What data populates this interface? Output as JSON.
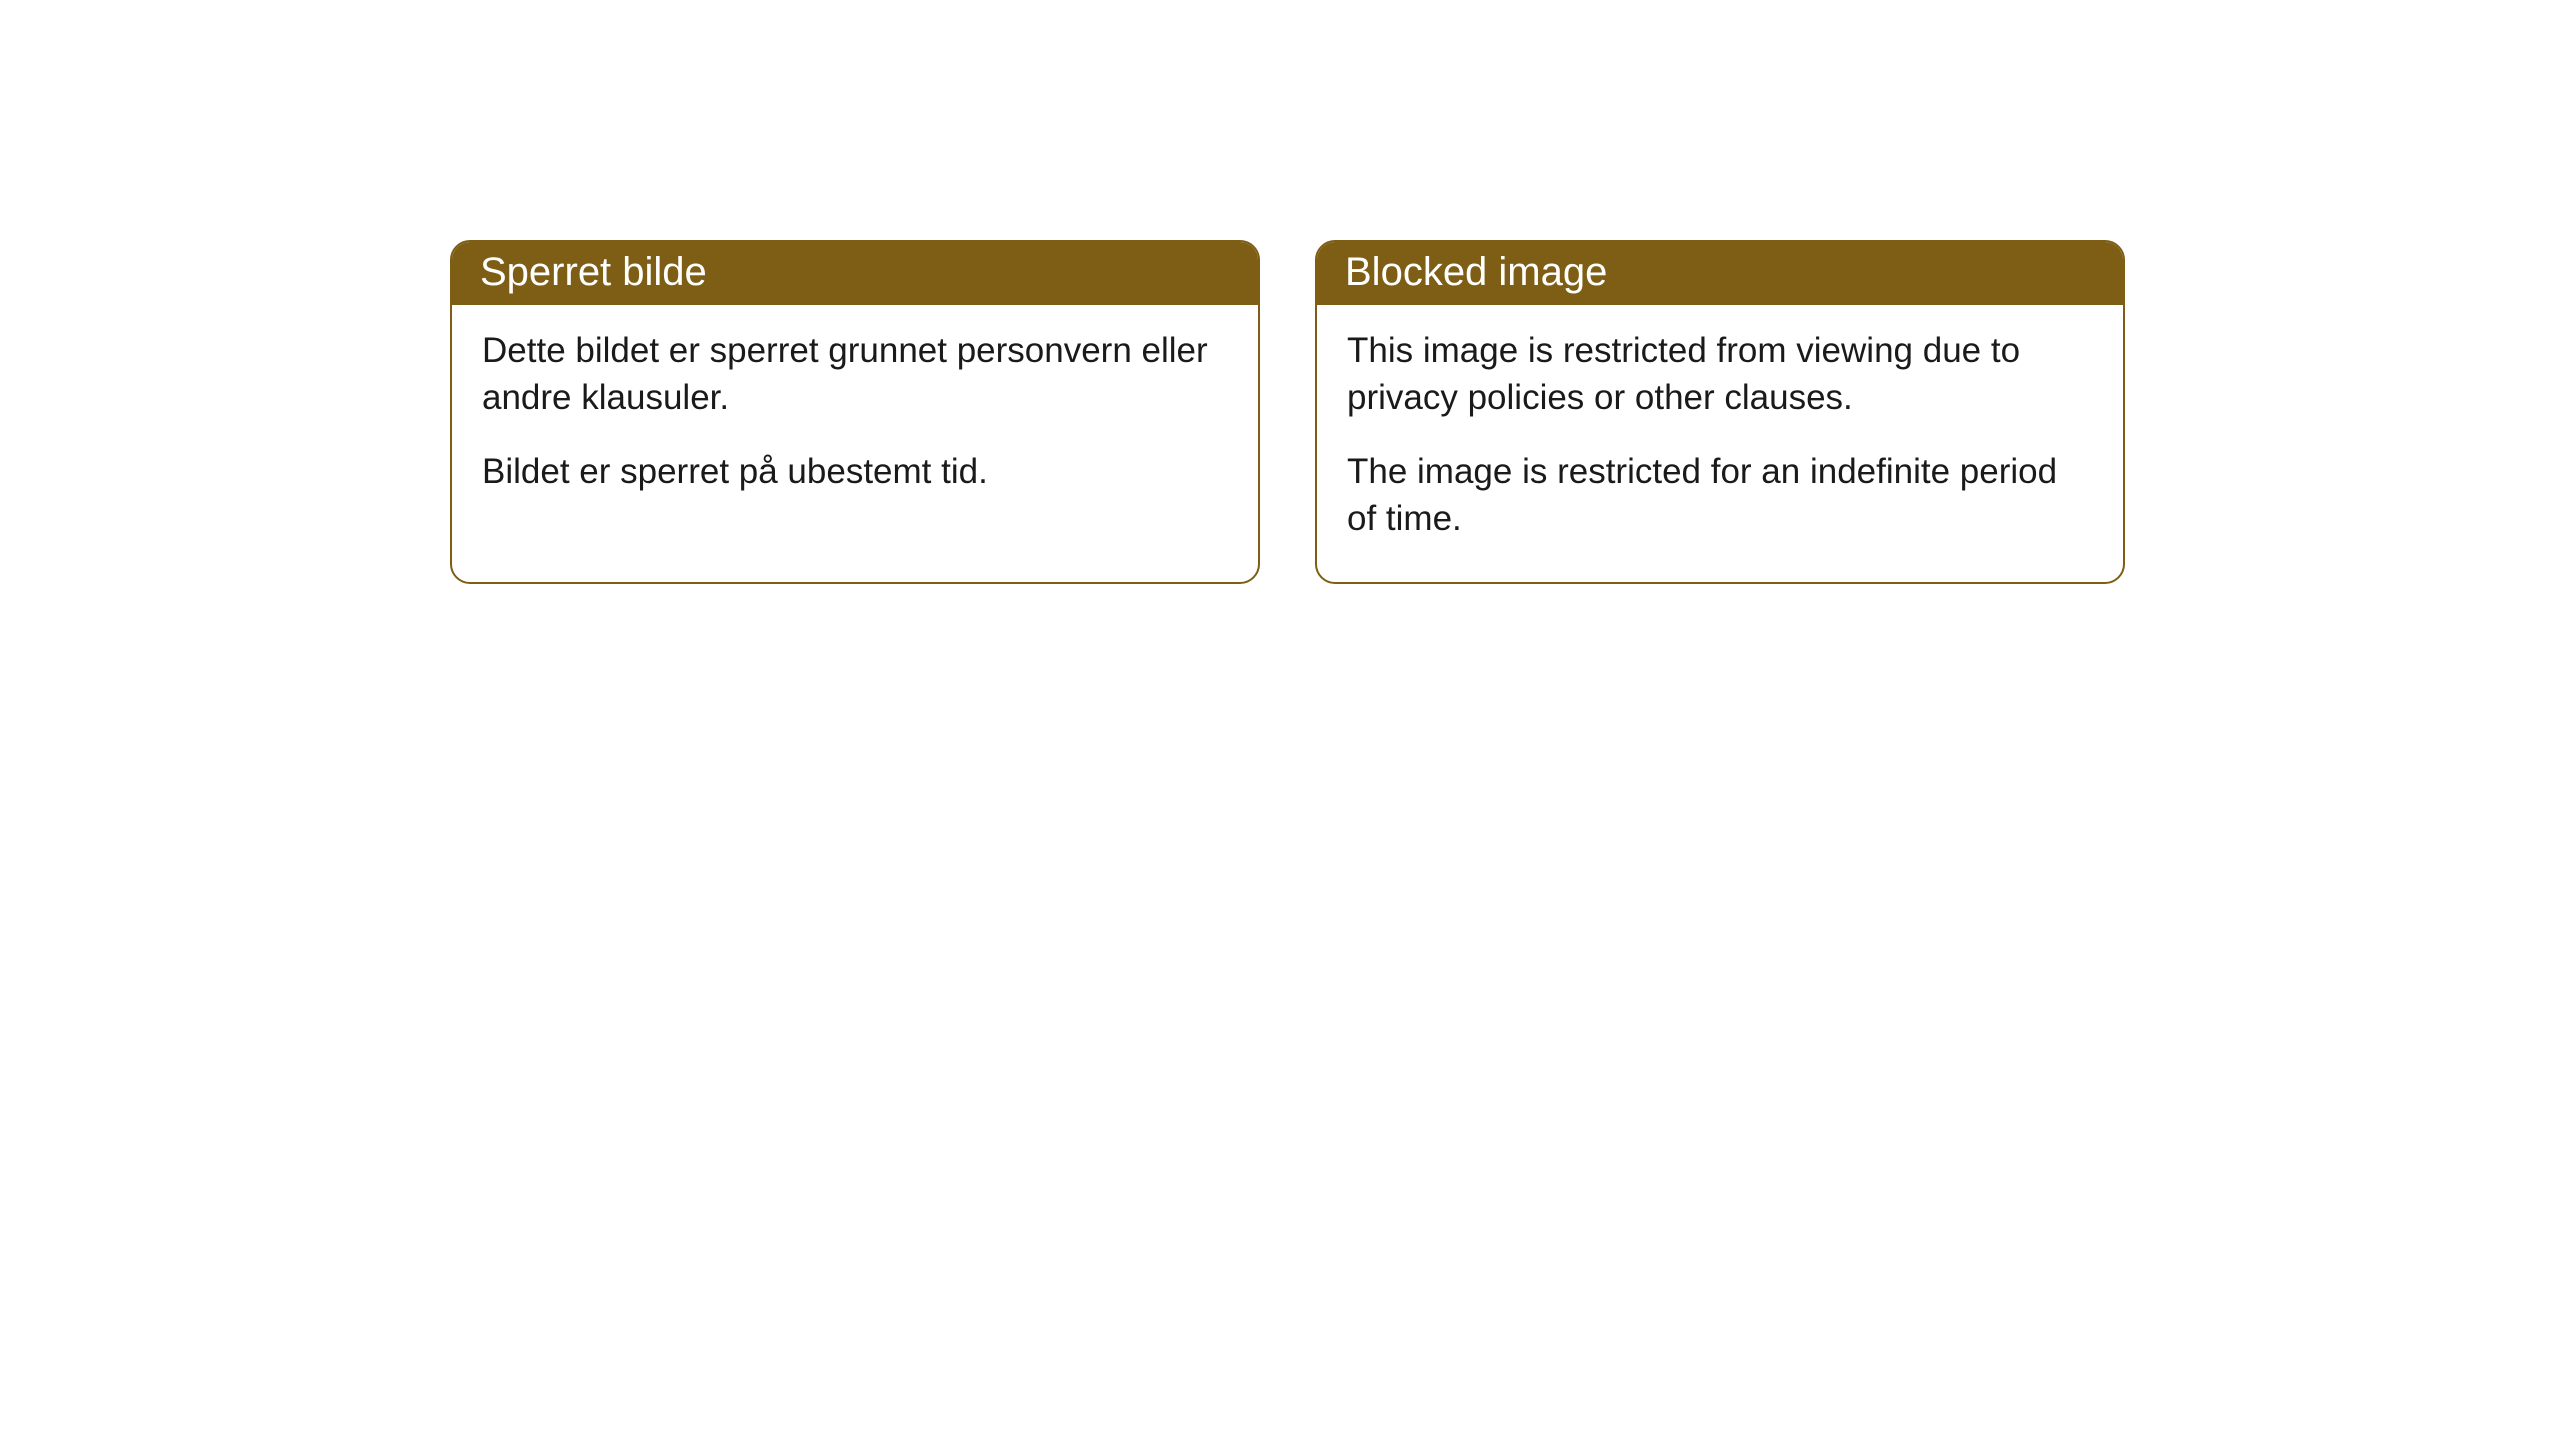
{
  "cards": [
    {
      "title": "Sperret bilde",
      "paragraph1": "Dette bildet er sperret grunnet personvern eller andre klausuler.",
      "paragraph2": "Bildet er sperret på ubestemt tid."
    },
    {
      "title": "Blocked image",
      "paragraph1": "This image is restricted from viewing due to privacy policies or other clauses.",
      "paragraph2": "The image is restricted for an indefinite period of time."
    }
  ],
  "styling": {
    "header_background_color": "#7d5e14",
    "header_text_color": "#ffffff",
    "border_color": "#7d5e14",
    "body_background_color": "#ffffff",
    "body_text_color": "#1a1a1a",
    "border_radius": 20,
    "header_fontsize": 40,
    "body_fontsize": 35
  }
}
